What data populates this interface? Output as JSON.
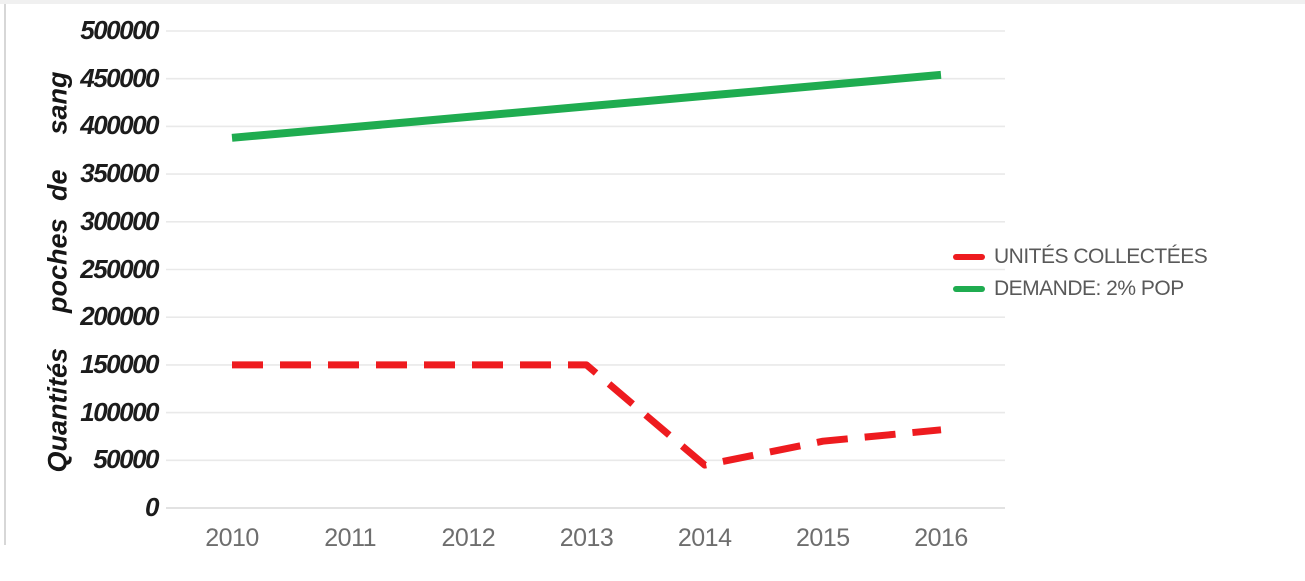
{
  "chart_data": {
    "type": "line",
    "title": "",
    "categories": [
      "2010",
      "2011",
      "2012",
      "2013",
      "2014",
      "2015",
      "2016"
    ],
    "series": [
      {
        "name": "UNITÉS COLLECTÉES",
        "color": "#ee1b1f",
        "line_style": "dashed",
        "values": [
          150000,
          150000,
          150000,
          150000,
          45000,
          70000,
          82000
        ]
      },
      {
        "name": "DEMANDE: 2% POP",
        "color": "#1fac50",
        "line_style": "solid",
        "values": [
          388000,
          399000,
          410000,
          421000,
          432000,
          443000,
          454000
        ]
      }
    ],
    "xlabel": "",
    "ylabel": "Quantités  poches de  sang",
    "ylim": [
      0,
      500000
    ],
    "ytick_labels": [
      "0",
      "50000",
      "100000",
      "150000",
      "200000",
      "250000",
      "300000",
      "350000",
      "400000",
      "450000",
      "500000"
    ],
    "grid": true,
    "legend_position": "right",
    "colors": {
      "grid": "#e9e9e9",
      "axis_line": "#d9d9d9",
      "ytick_text": "#1c1c1c",
      "xtick_text": "#6e6e6e",
      "legend_text": "#595959",
      "background": "#ffffff"
    }
  }
}
